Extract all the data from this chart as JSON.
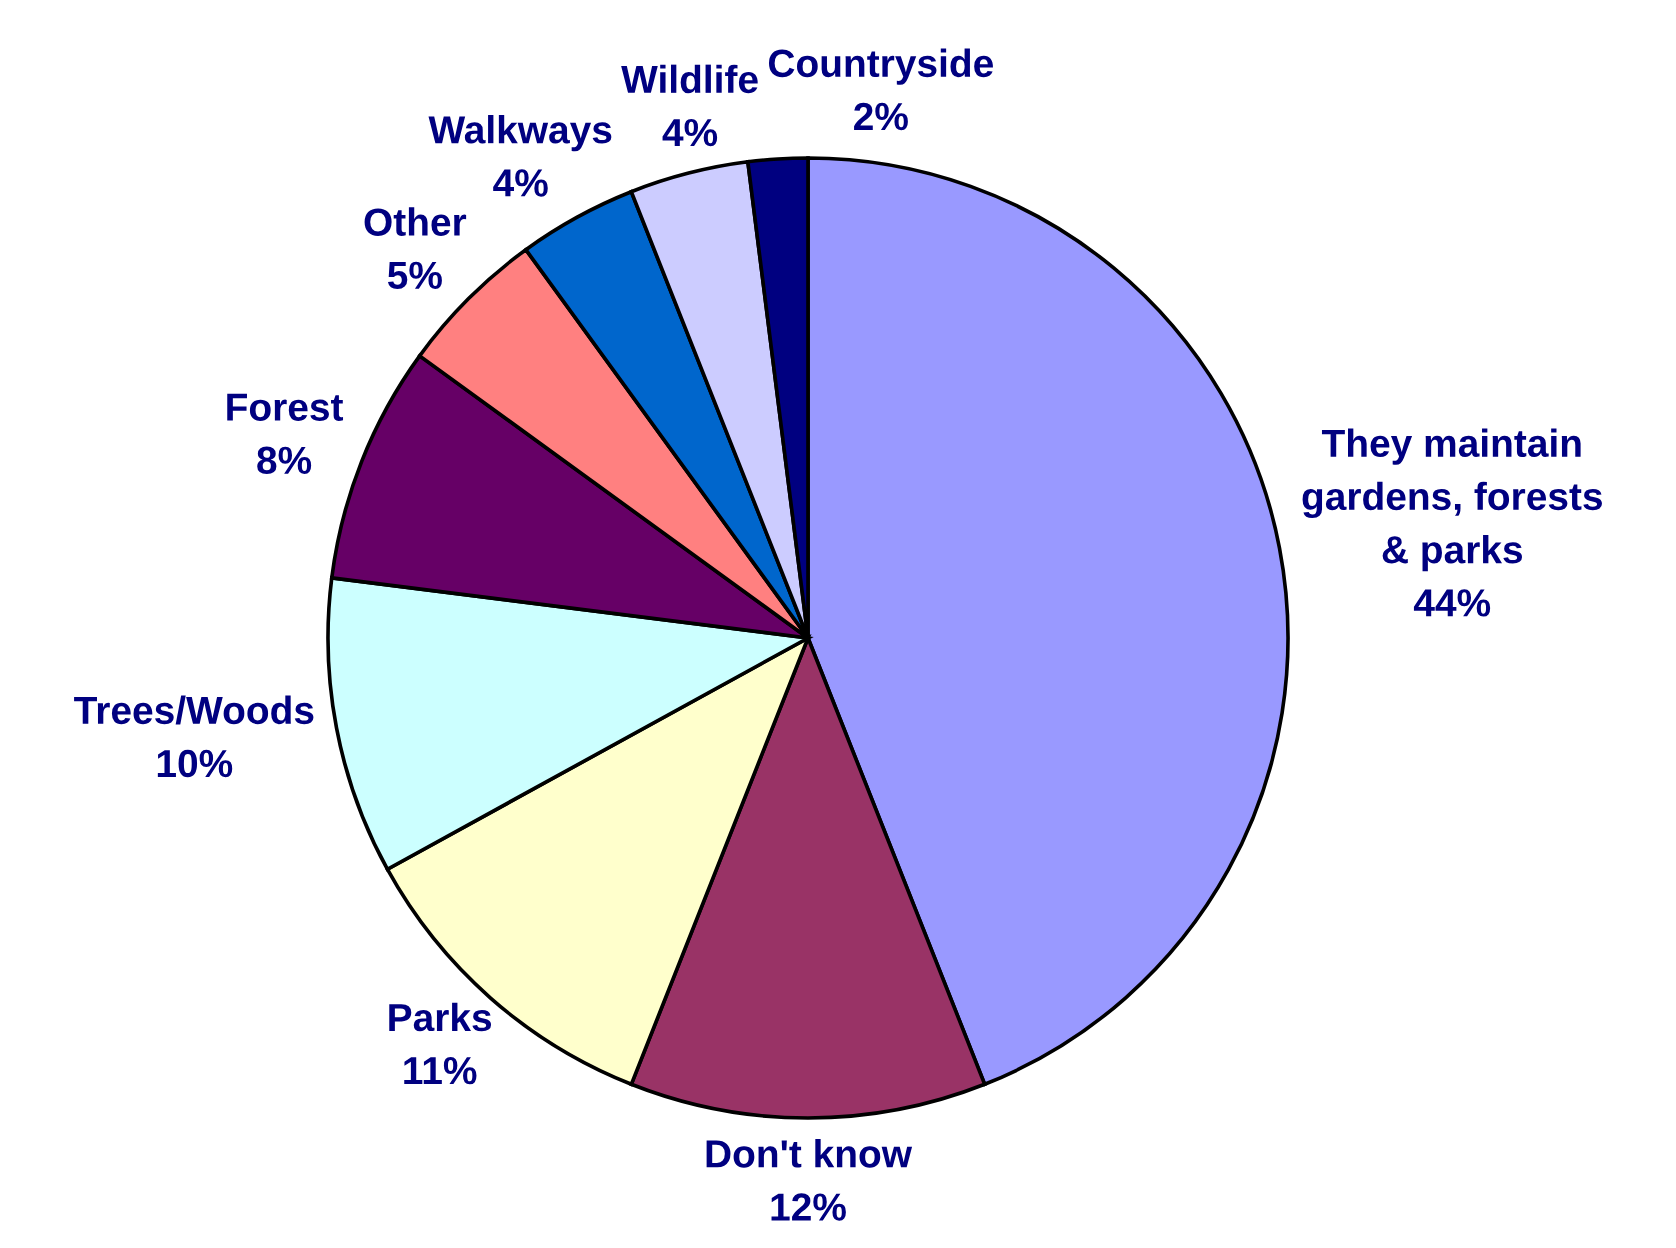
{
  "chart_data": {
    "type": "pie",
    "categories": [
      "They maintain\ngardens, forests\n& parks",
      "Don't know",
      "Parks",
      "Trees/Woods",
      "Forest",
      "Other",
      "Walkways",
      "Wildlife",
      "Countryside"
    ],
    "values": [
      44,
      12,
      11,
      10,
      8,
      5,
      4,
      4,
      2
    ],
    "value_labels": [
      "44%",
      "12%",
      "11%",
      "10%",
      "8%",
      "5%",
      "4%",
      "4%",
      "2%"
    ],
    "colors": [
      "#9999ff",
      "#993366",
      "#ffffcc",
      "#ccffff",
      "#660066",
      "#ff8080",
      "#0066cc",
      "#ccccff",
      "#000080"
    ]
  }
}
